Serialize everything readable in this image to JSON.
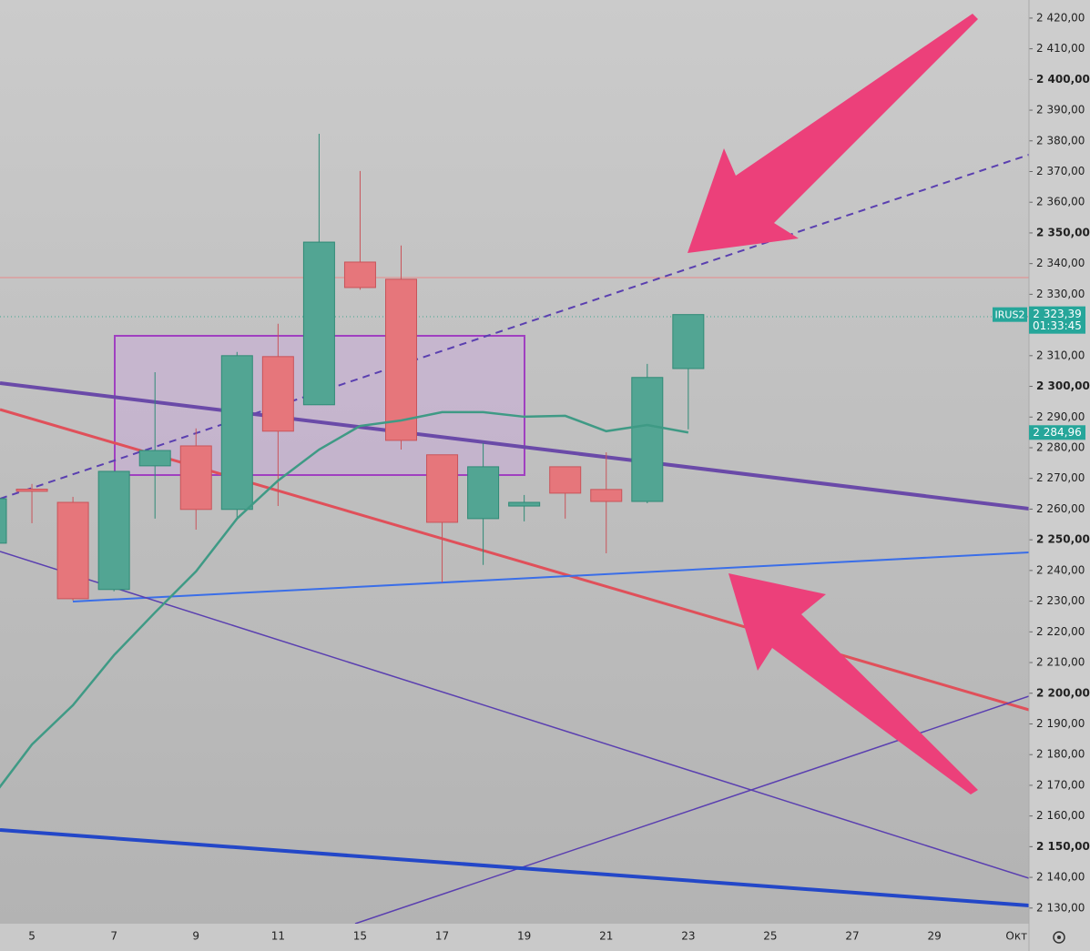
{
  "chart_data": {
    "type": "candlestick",
    "categories": [
      null,
      "5",
      null,
      "7",
      null,
      "9",
      null,
      "11",
      null,
      "15",
      null,
      "17",
      null,
      "19",
      null,
      "21",
      null,
      "23",
      null,
      "25",
      null,
      "27",
      null,
      "29",
      null,
      "Окт"
    ],
    "open": [
      2248.9,
      2266.5,
      2262.2,
      2233.8,
      2274.1,
      2280.6,
      2259.9,
      2309.7,
      2294.0,
      2340.5,
      2334.9,
      2277.7,
      2256.9,
      2261.0,
      2273.8,
      2266.4,
      2262.5,
      2305.8,
      null,
      null,
      null,
      null,
      null,
      null,
      null,
      null
    ],
    "high": [
      2265.0,
      2268.2,
      2264.0,
      2272.3,
      2304.6,
      2286.3,
      2311.2,
      2320.4,
      2382.3,
      2370.2,
      2345.9,
      2277.7,
      2281.5,
      2264.6,
      2273.8,
      2278.5,
      2307.3,
      2323.39,
      null,
      null,
      null,
      null,
      null,
      null,
      null,
      null
    ],
    "low": [
      2247.0,
      2255.4,
      2230.2,
      2233.2,
      2256.9,
      2253.3,
      2256.9,
      2261.0,
      2294.0,
      2331.5,
      2279.4,
      2236.1,
      2241.8,
      2256.0,
      2256.9,
      2245.6,
      2261.9,
      2286.0,
      null,
      null,
      null,
      null,
      null,
      null,
      null,
      null
    ],
    "close": [
      2263.4,
      2265.8,
      2230.8,
      2272.3,
      2279.1,
      2259.9,
      2310.0,
      2285.4,
      2347.0,
      2332.2,
      2282.4,
      2255.7,
      2273.8,
      2262.2,
      2265.2,
      2262.5,
      2302.9,
      2323.39,
      null,
      null,
      null,
      null,
      null,
      null,
      null,
      null
    ],
    "up_color": "#52a593",
    "down_color": "#e6767b",
    "moving_average": {
      "color": "#3f9a85",
      "values": [
        2165.6,
        2183.3,
        2196.1,
        2212.4,
        2226.3,
        2239.7,
        2256.9,
        2269.3,
        2279.4,
        2287.1,
        2288.9,
        2291.6,
        2291.6,
        2290.1,
        2290.4,
        2285.4,
        2287.4,
        2284.96,
        null,
        null,
        null,
        null,
        null,
        null,
        null,
        null
      ]
    },
    "ylim": [
      2124.9,
      2425.9
    ],
    "yticks": [
      {
        "value": 2130,
        "label": "2 130,00"
      },
      {
        "value": 2140,
        "label": "2 140,00"
      },
      {
        "value": 2150,
        "label": "2 150,00"
      },
      {
        "value": 2160,
        "label": "2 160,00"
      },
      {
        "value": 2170,
        "label": "2 170,00"
      },
      {
        "value": 2180,
        "label": "2 180,00"
      },
      {
        "value": 2190,
        "label": "2 190,00"
      },
      {
        "value": 2200,
        "label": "2 200,00"
      },
      {
        "value": 2210,
        "label": "2 210,00"
      },
      {
        "value": 2220,
        "label": "2 220,00"
      },
      {
        "value": 2230,
        "label": "2 230,00"
      },
      {
        "value": 2240,
        "label": "2 240,00"
      },
      {
        "value": 2250,
        "label": "2 250,00"
      },
      {
        "value": 2260,
        "label": "2 260,00"
      },
      {
        "value": 2270,
        "label": "2 270,00"
      },
      {
        "value": 2280,
        "label": "2 280,00"
      },
      {
        "value": 2290,
        "label": "2 290,00"
      },
      {
        "value": 2300,
        "label": "2 300,00"
      },
      {
        "value": 2310,
        "label": "2 310,00"
      },
      {
        "value": 2320,
        "label": "2 320,00"
      },
      {
        "value": 2330,
        "label": "2 330,00"
      },
      {
        "value": 2340,
        "label": "2 340,00"
      },
      {
        "value": 2350,
        "label": "2 350,00"
      },
      {
        "value": 2360,
        "label": "2 360,00"
      },
      {
        "value": 2370,
        "label": "2 370,00"
      },
      {
        "value": 2380,
        "label": "2 380,00"
      },
      {
        "value": 2390,
        "label": "2 390,00"
      },
      {
        "value": 2400,
        "label": "2 400,00"
      },
      {
        "value": 2410,
        "label": "2 410,00"
      },
      {
        "value": 2420,
        "label": "2 420,00"
      }
    ],
    "price_badge": {
      "symbol": "IRUS2",
      "value": 2323.39,
      "label": "2 323,39",
      "countdown": "01:33:45",
      "color": "#26a69a"
    },
    "ma_badge": {
      "value": 2284.96,
      "label": "2 284,96",
      "color": "#26a69a"
    }
  }
}
